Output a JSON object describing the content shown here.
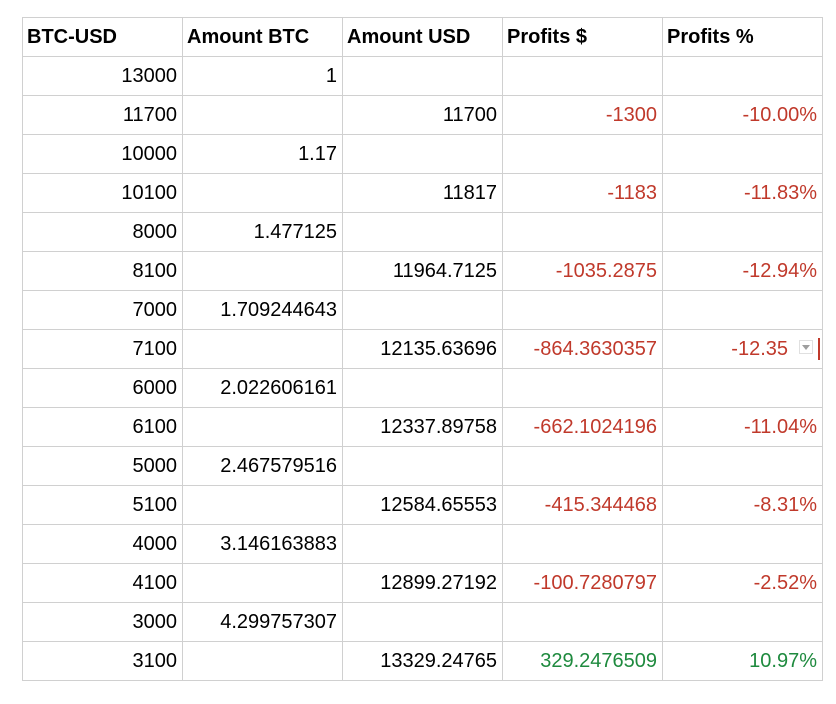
{
  "colors": {
    "negative": "#c0392b",
    "positive": "#1e8a3e",
    "gridline": "#d0d0d0"
  },
  "headers": [
    "BTC-USD",
    "Amount BTC",
    "Amount USD",
    "Profits $",
    "Profits %"
  ],
  "rows": [
    {
      "btc_usd": "13000",
      "amount_btc": "1",
      "amount_usd": "",
      "profits_usd": "",
      "profits_pct": ""
    },
    {
      "btc_usd": "11700",
      "amount_btc": "",
      "amount_usd": "11700",
      "profits_usd": "-1300",
      "profits_pct": "-10.00%"
    },
    {
      "btc_usd": "10000",
      "amount_btc": "1.17",
      "amount_usd": "",
      "profits_usd": "",
      "profits_pct": ""
    },
    {
      "btc_usd": "10100",
      "amount_btc": "",
      "amount_usd": "11817",
      "profits_usd": "-1183",
      "profits_pct": "-11.83%"
    },
    {
      "btc_usd": "8000",
      "amount_btc": "1.477125",
      "amount_usd": "",
      "profits_usd": "",
      "profits_pct": ""
    },
    {
      "btc_usd": "8100",
      "amount_btc": "",
      "amount_usd": "11964.7125",
      "profits_usd": "-1035.2875",
      "profits_pct": "-12.94%"
    },
    {
      "btc_usd": "7000",
      "amount_btc": "1.709244643",
      "amount_usd": "",
      "profits_usd": "",
      "profits_pct": ""
    },
    {
      "btc_usd": "7100",
      "amount_btc": "",
      "amount_usd": "12135.63696",
      "profits_usd": "-864.3630357",
      "profits_pct": "-12.35"
    },
    {
      "btc_usd": "6000",
      "amount_btc": "2.022606161",
      "amount_usd": "",
      "profits_usd": "",
      "profits_pct": ""
    },
    {
      "btc_usd": "6100",
      "amount_btc": "",
      "amount_usd": "12337.89758",
      "profits_usd": "-662.1024196",
      "profits_pct": "-11.04%"
    },
    {
      "btc_usd": "5000",
      "amount_btc": "2.467579516",
      "amount_usd": "",
      "profits_usd": "",
      "profits_pct": ""
    },
    {
      "btc_usd": "5100",
      "amount_btc": "",
      "amount_usd": "12584.65553",
      "profits_usd": "-415.344468",
      "profits_pct": "-8.31%"
    },
    {
      "btc_usd": "4000",
      "amount_btc": "3.146163883",
      "amount_usd": "",
      "profits_usd": "",
      "profits_pct": ""
    },
    {
      "btc_usd": "4100",
      "amount_btc": "",
      "amount_usd": "12899.27192",
      "profits_usd": "-100.7280797",
      "profits_pct": "-2.52%"
    },
    {
      "btc_usd": "3000",
      "amount_btc": "4.299757307",
      "amount_usd": "",
      "profits_usd": "",
      "profits_pct": ""
    },
    {
      "btc_usd": "3100",
      "amount_btc": "",
      "amount_usd": "13329.24765",
      "profits_usd": "329.2476509",
      "profits_pct": "10.97%"
    }
  ],
  "dropdown_icon": "chevron-down-icon"
}
